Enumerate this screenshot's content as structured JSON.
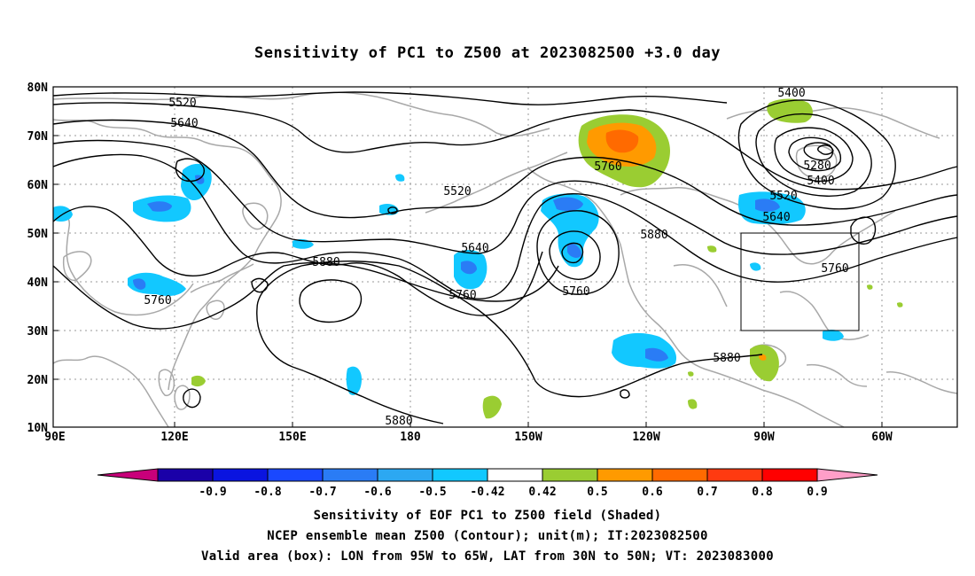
{
  "title": "Sensitivity of PC1 to Z500 at 2023082500 +3.0 day",
  "lat_labels": [
    "80N",
    "70N",
    "60N",
    "50N",
    "40N",
    "30N",
    "20N",
    "10N"
  ],
  "lon_labels": [
    "90E",
    "120E",
    "150E",
    "180",
    "150W",
    "120W",
    "90W",
    "60W"
  ],
  "colorbar": {
    "ticks": [
      "-0.9",
      "-0.8",
      "-0.7",
      "-0.6",
      "-0.5",
      "-0.42",
      "0.42",
      "0.5",
      "0.6",
      "0.7",
      "0.8",
      "0.9"
    ],
    "colors": [
      "#c8007a",
      "#1a00a8",
      "#0a14e0",
      "#1a48ff",
      "#2a7cf5",
      "#2ca8f2",
      "#12c8ff",
      "#ffffff",
      "#9acd32",
      "#ff9a00",
      "#ff6a00",
      "#ff3a10",
      "#ff0000",
      "#ff9ec8"
    ]
  },
  "contour_labels": [
    "5520",
    "5640",
    "5400",
    "5280",
    "5400",
    "5520",
    "5640",
    "5760",
    "5760",
    "5520",
    "5640",
    "5760",
    "5760",
    "5880",
    "5880",
    "5760",
    "5880",
    "5880"
  ],
  "valid_box": {
    "lon_w": -95,
    "lon_e": -65,
    "lat_s": 30,
    "lat_n": 50
  },
  "captions": {
    "line1": "Sensitivity of EOF PC1 to Z500 field (Shaded)",
    "line2": "NCEP ensemble mean Z500 (Contour); unit(m); IT:2023082500",
    "line3": "Valid area (box): LON from 95W to 65W, LAT from 30N to 50N; VT: 2023083000"
  }
}
